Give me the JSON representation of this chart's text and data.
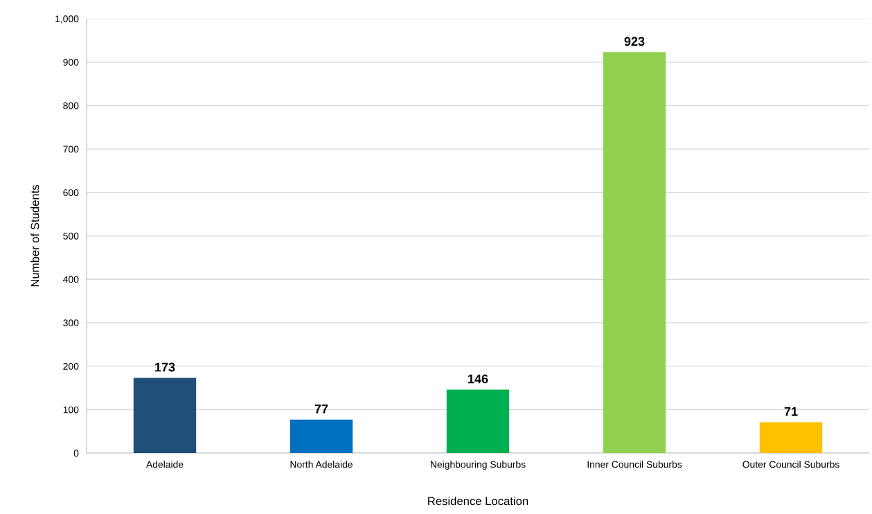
{
  "chart_data": {
    "type": "bar",
    "xlabel": "Residence Location",
    "ylabel": "Number of Students",
    "categories": [
      "Adelaide",
      "North Adelaide",
      "Neighbouring Suburbs",
      "Inner Council Suburbs",
      "Outer Council Suburbs"
    ],
    "values": [
      173,
      77,
      146,
      923,
      71
    ],
    "colors": [
      "#1f4e79",
      "#0070c0",
      "#00b050",
      "#92d050",
      "#ffc000"
    ],
    "ylim": [
      0,
      1000
    ],
    "yticks": [
      0,
      100,
      200,
      300,
      400,
      500,
      600,
      700,
      800,
      900,
      {
        "value": 1000,
        "label": "1,000"
      }
    ],
    "grid": "y",
    "data_labels": true,
    "legend": false
  }
}
